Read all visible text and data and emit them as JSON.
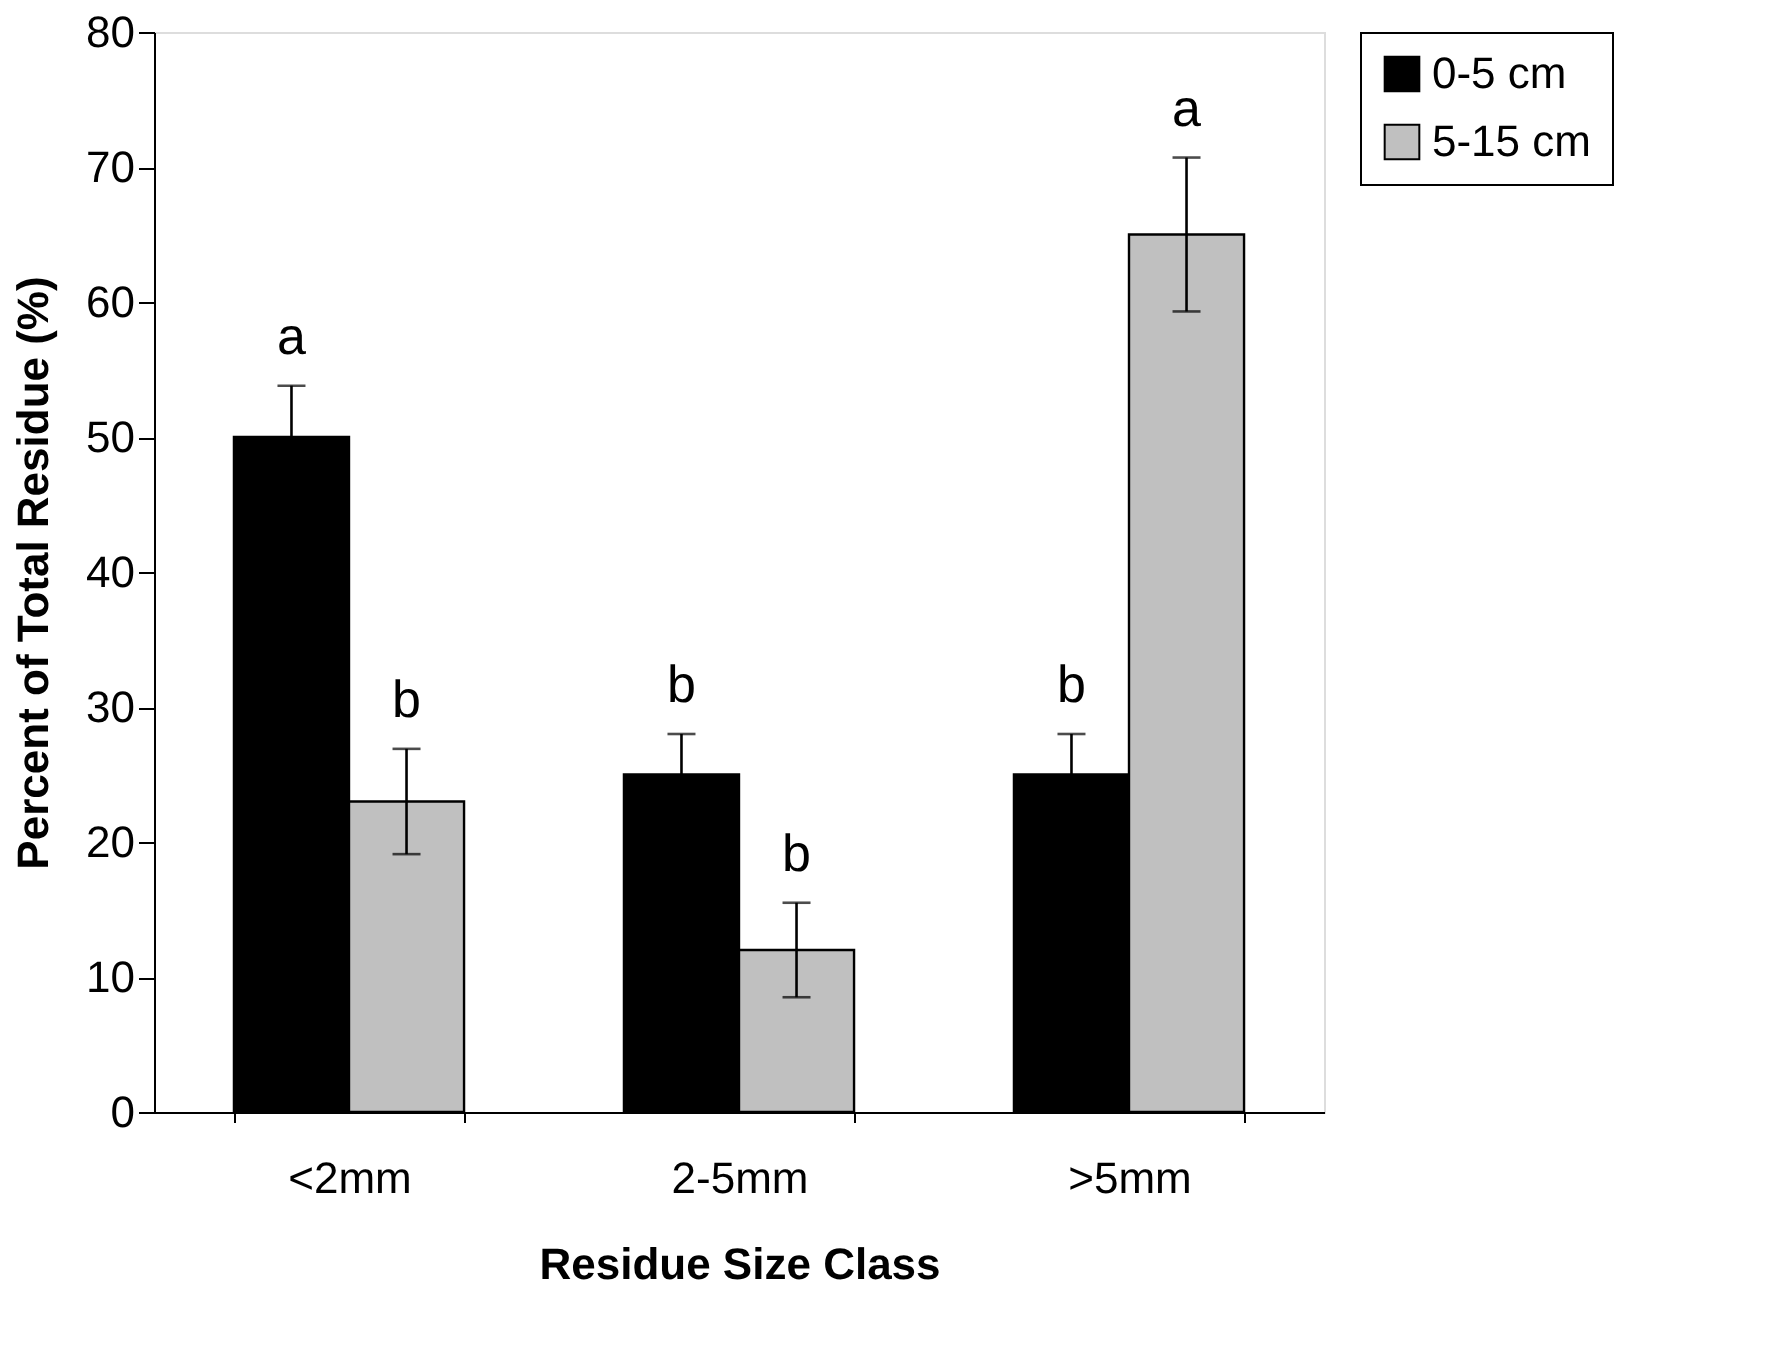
{
  "chart_data": {
    "type": "bar",
    "xlabel": "Residue Size Class",
    "ylabel": "Percent of Total Residue (%)",
    "categories": [
      "<2mm",
      "2-5mm",
      ">5mm"
    ],
    "series": [
      {
        "name": "0-5 cm",
        "color": "#000000",
        "values": [
          50,
          25,
          25
        ],
        "errors": [
          3.8,
          3,
          3
        ],
        "value_labels": [
          "a",
          "b",
          "b"
        ]
      },
      {
        "name": "5-15 cm",
        "color": "#c0c0c0",
        "values": [
          23,
          12,
          65
        ],
        "errors": [
          3.9,
          3.5,
          5.7
        ],
        "value_labels": [
          "b",
          "b",
          "a"
        ]
      }
    ],
    "ylim": [
      0,
      80
    ],
    "yticks": [
      0,
      10,
      20,
      30,
      40,
      50,
      60,
      70,
      80
    ],
    "grid": false,
    "legend": "right"
  }
}
